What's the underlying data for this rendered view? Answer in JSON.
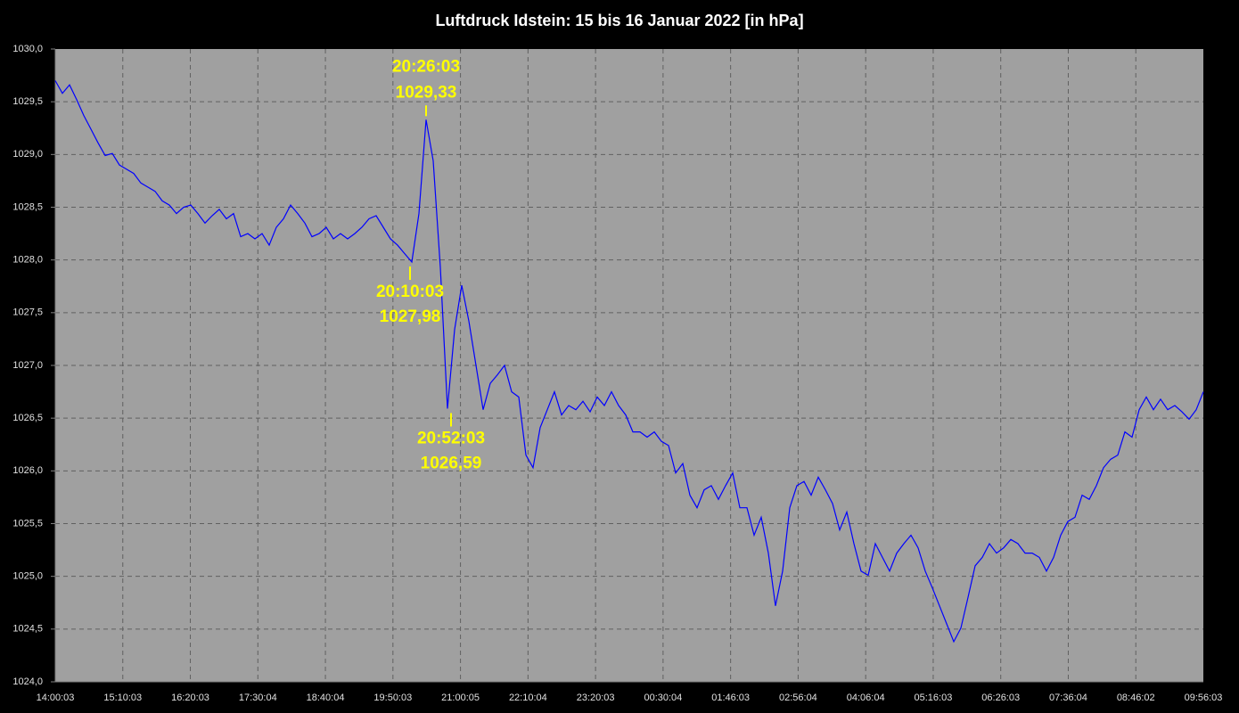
{
  "chart_data": {
    "type": "line",
    "title": "Luftdruck Idstein:  15 bis 16 Januar 2022  [in hPa]",
    "color": "#0000ff",
    "grid": true,
    "ylim": [
      1024,
      1030
    ],
    "yticks": [
      {
        "value": 1024,
        "label": "1024,0"
      },
      {
        "value": 1024.5,
        "label": "1024,5"
      },
      {
        "value": 1025,
        "label": "1025,0"
      },
      {
        "value": 1025.5,
        "label": "1025,5"
      },
      {
        "value": 1026,
        "label": "1026,0"
      },
      {
        "value": 1026.5,
        "label": "1026,5"
      },
      {
        "value": 1027,
        "label": "1027,0"
      },
      {
        "value": 1027.5,
        "label": "1027,5"
      },
      {
        "value": 1028,
        "label": "1028,0"
      },
      {
        "value": 1028.5,
        "label": "1028,5"
      },
      {
        "value": 1029,
        "label": "1029,0"
      },
      {
        "value": 1029.5,
        "label": "1029,5"
      },
      {
        "value": 1030,
        "label": "1030,0"
      }
    ],
    "xticks": [
      "14:00:03",
      "15:10:03",
      "16:20:03",
      "17:30:04",
      "18:40:04",
      "19:50:03",
      "21:00:05",
      "22:10:04",
      "23:20:03",
      "00:30:04",
      "01:46:03",
      "02:56:04",
      "04:06:04",
      "05:16:03",
      "06:26:03",
      "07:36:04",
      "08:46:02",
      "09:56:03"
    ],
    "values": [
      1029.7,
      1029.58,
      1029.66,
      1029.52,
      1029.37,
      1029.24,
      1029.11,
      1028.99,
      1029.01,
      1028.9,
      1028.86,
      1028.82,
      1028.73,
      1028.69,
      1028.65,
      1028.56,
      1028.52,
      1028.44,
      1028.5,
      1028.52,
      1028.44,
      1028.35,
      1028.42,
      1028.48,
      1028.39,
      1028.44,
      1028.22,
      1028.25,
      1028.2,
      1028.25,
      1028.14,
      1028.31,
      1028.39,
      1028.52,
      1028.44,
      1028.35,
      1028.22,
      1028.25,
      1028.31,
      1028.2,
      1028.25,
      1028.2,
      1028.25,
      1028.31,
      1028.39,
      1028.42,
      1028.31,
      1028.2,
      1028.14,
      1028.06,
      1027.98,
      1028.44,
      1029.33,
      1028.94,
      1027.93,
      1026.59,
      1027.34,
      1027.76,
      1027.42,
      1027.0,
      1026.58,
      1026.83,
      1026.91,
      1027.0,
      1026.75,
      1026.7,
      1026.15,
      1026.03,
      1026.41,
      1026.58,
      1026.75,
      1026.53,
      1026.62,
      1026.58,
      1026.66,
      1026.56,
      1026.7,
      1026.62,
      1026.75,
      1026.62,
      1026.53,
      1026.37,
      1026.37,
      1026.32,
      1026.37,
      1026.28,
      1026.24,
      1025.98,
      1026.07,
      1025.77,
      1025.65,
      1025.82,
      1025.86,
      1025.73,
      1025.86,
      1025.98,
      1025.65,
      1025.65,
      1025.39,
      1025.56,
      1025.22,
      1024.72,
      1025.05,
      1025.65,
      1025.86,
      1025.9,
      1025.77,
      1025.94,
      1025.82,
      1025.69,
      1025.44,
      1025.61,
      1025.31,
      1025.05,
      1025.01,
      1025.31,
      1025.18,
      1025.05,
      1025.22,
      1025.31,
      1025.39,
      1025.27,
      1025.05,
      1024.89,
      1024.72,
      1024.55,
      1024.38,
      1024.51,
      1024.8,
      1025.1,
      1025.18,
      1025.31,
      1025.22,
      1025.27,
      1025.35,
      1025.31,
      1025.22,
      1025.22,
      1025.18,
      1025.05,
      1025.18,
      1025.39,
      1025.52,
      1025.56,
      1025.77,
      1025.73,
      1025.86,
      1026.03,
      1026.11,
      1026.15,
      1026.37,
      1026.32,
      1026.58,
      1026.7,
      1026.58,
      1026.68,
      1026.58,
      1026.62,
      1026.56,
      1026.49,
      1026.58,
      1026.75
    ],
    "annotations": [
      {
        "time": "20:26:03",
        "value": 1029.33,
        "value_label": "1029,33"
      },
      {
        "time": "20:10:03",
        "value": 1027.98,
        "value_label": "1027,98"
      },
      {
        "time": "20:52:03",
        "value": 1026.59,
        "value_label": "1026,59"
      }
    ]
  }
}
